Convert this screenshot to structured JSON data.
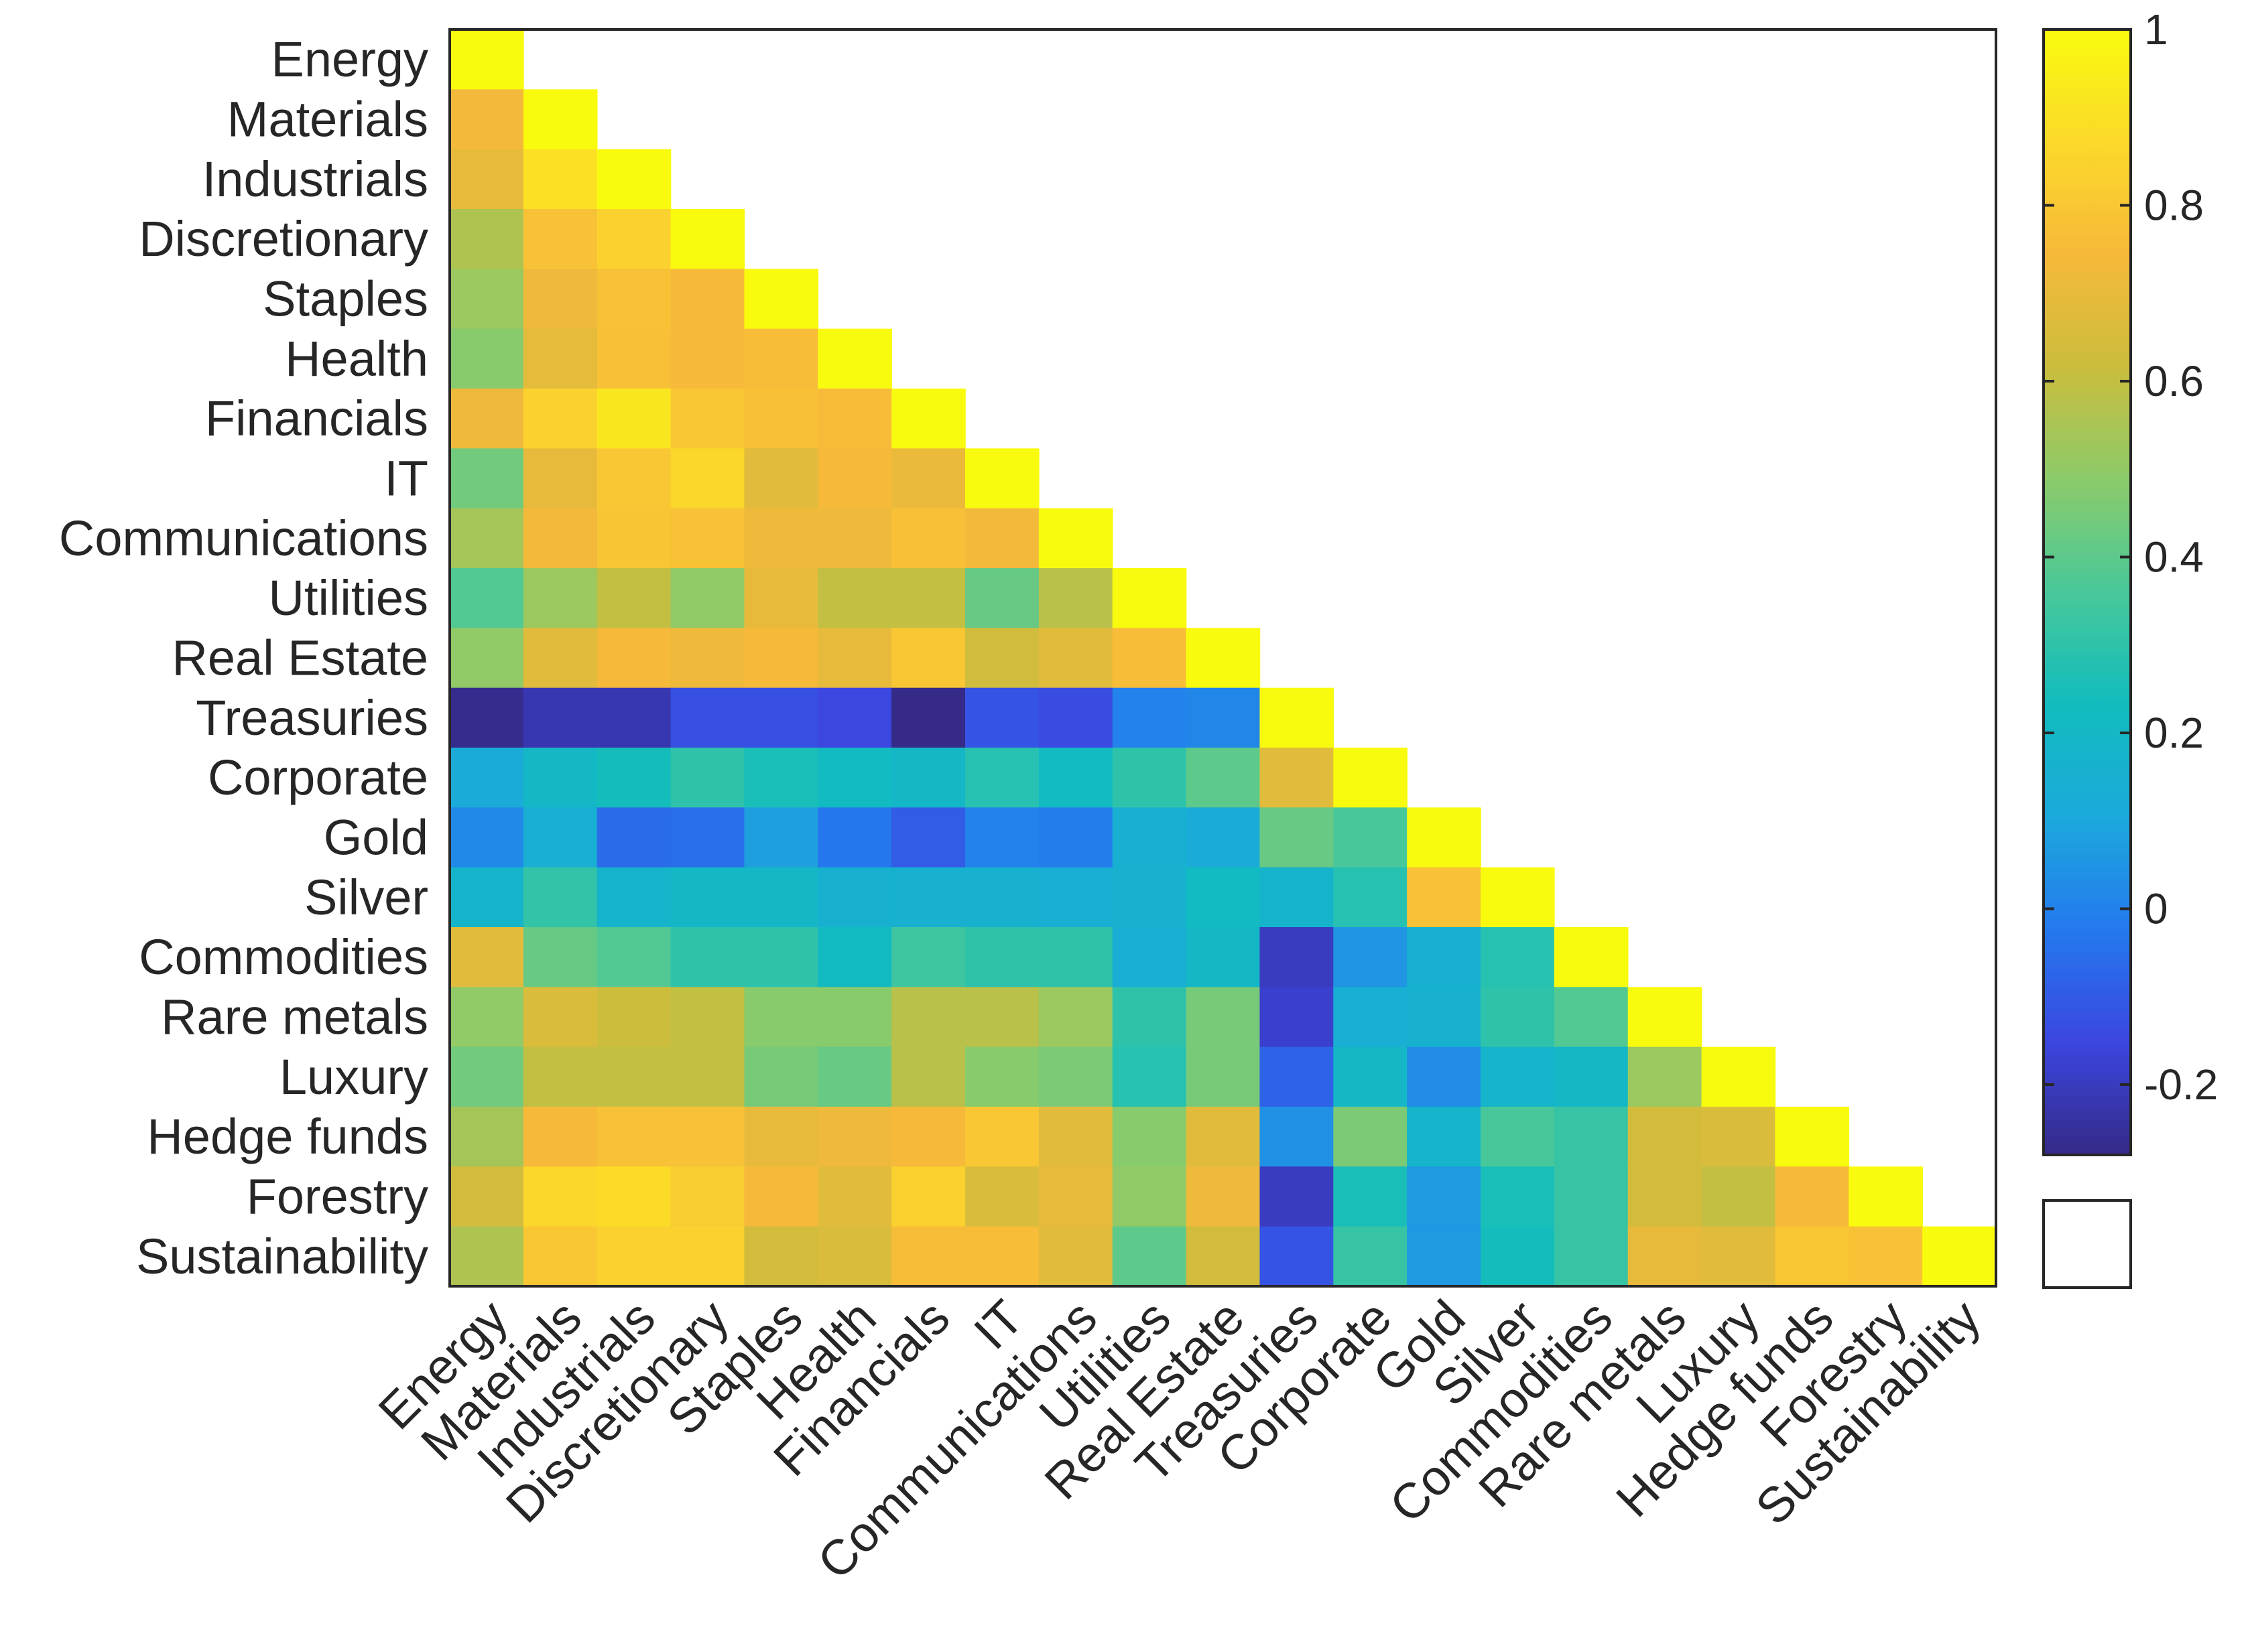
{
  "chart_data": {
    "type": "heatmap",
    "title": "",
    "xlabel": "",
    "ylabel": "",
    "row_labels": [
      "Energy",
      "Materials",
      "Industrials",
      "Discretionary",
      "Staples",
      "Health",
      "Financials",
      "IT",
      "Communications",
      "Utilities",
      "Real Estate",
      "Treasuries",
      "Corporate",
      "Gold",
      "Silver",
      "Commodities",
      "Rare metals",
      "Luxury",
      "Hedge funds",
      "Forestry",
      "Sustainability"
    ],
    "col_labels": [
      "Energy",
      "Materials",
      "Industrials",
      "Discretionary",
      "Staples",
      "Health",
      "Financials",
      "IT",
      "Communications",
      "Utilities",
      "Real Estate",
      "Treasuries",
      "Corporate",
      "Gold",
      "Silver",
      "Commodities",
      "Rare metals",
      "Luxury",
      "Hedge funds",
      "Forestry",
      "Sustainability"
    ],
    "values": [
      [
        1.0
      ],
      [
        0.73,
        1.0
      ],
      [
        0.7,
        0.9,
        1.0
      ],
      [
        0.56,
        0.78,
        0.84,
        1.0
      ],
      [
        0.52,
        0.72,
        0.78,
        0.74,
        1.0
      ],
      [
        0.48,
        0.69,
        0.77,
        0.74,
        0.76,
        1.0
      ],
      [
        0.72,
        0.84,
        0.92,
        0.8,
        0.77,
        0.75,
        1.0
      ],
      [
        0.44,
        0.7,
        0.8,
        0.86,
        0.68,
        0.74,
        0.71,
        1.0
      ],
      [
        0.54,
        0.73,
        0.79,
        0.78,
        0.72,
        0.72,
        0.77,
        0.73,
        1.0
      ],
      [
        0.38,
        0.52,
        0.6,
        0.5,
        0.7,
        0.6,
        0.6,
        0.42,
        0.58,
        1.0
      ],
      [
        0.5,
        0.68,
        0.74,
        0.72,
        0.74,
        0.7,
        0.8,
        0.63,
        0.68,
        0.76,
        1.0
      ],
      [
        -0.27,
        -0.22,
        -0.22,
        -0.13,
        -0.13,
        -0.15,
        -0.28,
        -0.12,
        -0.14,
        0.0,
        0.01,
        1.0
      ],
      [
        0.12,
        0.2,
        0.24,
        0.3,
        0.25,
        0.22,
        0.2,
        0.28,
        0.22,
        0.3,
        0.4,
        0.68,
        1.0
      ],
      [
        0.02,
        0.14,
        -0.06,
        -0.05,
        0.08,
        -0.03,
        -0.1,
        0.0,
        -0.01,
        0.15,
        0.12,
        0.42,
        0.36,
        1.0
      ],
      [
        0.18,
        0.31,
        0.18,
        0.2,
        0.2,
        0.16,
        0.16,
        0.16,
        0.14,
        0.16,
        0.22,
        0.18,
        0.28,
        0.78,
        1.0
      ],
      [
        0.68,
        0.42,
        0.38,
        0.3,
        0.3,
        0.22,
        0.34,
        0.3,
        0.3,
        0.14,
        0.2,
        -0.2,
        0.05,
        0.15,
        0.28,
        1.0
      ],
      [
        0.5,
        0.66,
        0.62,
        0.6,
        0.48,
        0.48,
        0.58,
        0.58,
        0.52,
        0.3,
        0.45,
        -0.18,
        0.14,
        0.16,
        0.3,
        0.38,
        1.0
      ],
      [
        0.44,
        0.6,
        0.6,
        0.6,
        0.45,
        0.42,
        0.58,
        0.48,
        0.46,
        0.28,
        0.45,
        -0.08,
        0.2,
        0.03,
        0.18,
        0.2,
        0.52,
        1.0
      ],
      [
        0.54,
        0.74,
        0.78,
        0.78,
        0.7,
        0.72,
        0.74,
        0.8,
        0.68,
        0.48,
        0.68,
        0.04,
        0.46,
        0.18,
        0.36,
        0.32,
        0.64,
        0.66,
        1.0
      ],
      [
        0.64,
        0.86,
        0.88,
        0.82,
        0.74,
        0.68,
        0.84,
        0.66,
        0.7,
        0.5,
        0.72,
        -0.2,
        0.25,
        0.06,
        0.25,
        0.32,
        0.64,
        0.6,
        0.74,
        1.0
      ],
      [
        0.56,
        0.8,
        0.84,
        0.84,
        0.64,
        0.66,
        0.76,
        0.76,
        0.68,
        0.4,
        0.64,
        -0.12,
        0.32,
        0.06,
        0.24,
        0.32,
        0.7,
        0.68,
        0.8,
        0.78,
        1.0
      ]
    ],
    "masked": "upper triangle (j > i) left blank",
    "colorbar": {
      "min": -0.28,
      "max": 1.0,
      "ticks": [
        -0.2,
        0,
        0.2,
        0.4,
        0.6,
        0.8,
        1
      ],
      "tick_labels": [
        "-0.2",
        "0",
        "0.2",
        "0.4",
        "0.6",
        "0.8",
        "1"
      ],
      "colormap": "parula",
      "stops": [
        "#352a87",
        "#3b46e0",
        "#2479ee",
        "#1ca9dc",
        "#11bcbe",
        "#48c89a",
        "#8bcb6a",
        "#cbbd3d",
        "#f7b93a",
        "#fbd92a",
        "#f9fb0e"
      ],
      "nan_color": "#ffffff",
      "nan_label": ""
    },
    "grid": false,
    "legend": "colorbar on the right, blank NaN swatch below"
  }
}
